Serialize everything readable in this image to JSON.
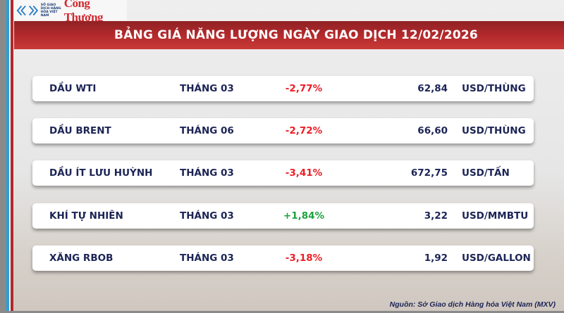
{
  "header": {
    "logo_mxv_text": "SỞ GIAO DỊCH HÀNG HÓA VIỆT NAM",
    "logo_congthuong": "Công Thương",
    "title": "BẢNG GIÁ NĂNG LƯỢNG NGÀY GIAO DỊCH 12/02/2026"
  },
  "colors": {
    "negative": "#ee1c25",
    "positive": "#1aa33c",
    "text": "#1c2455",
    "band": "#b3292c"
  },
  "rows": [
    {
      "name": "DẦU WTI",
      "month": "THÁNG 03",
      "change": "-2,77%",
      "direction": "down",
      "price": "62,84",
      "unit": "USD/THÙNG"
    },
    {
      "name": "DẦU BRENT",
      "month": "THÁNG 06",
      "change": "-2,72%",
      "direction": "down",
      "price": "66,60",
      "unit": "USD/THÙNG"
    },
    {
      "name": "DẦU ÍT LƯU HUỲNH",
      "month": "THÁNG 03",
      "change": "-3,41%",
      "direction": "down",
      "price": "672,75",
      "unit": "USD/TẤN"
    },
    {
      "name": "KHÍ TỰ NHIÊN",
      "month": "THÁNG 03",
      "change": "+1,84%",
      "direction": "up",
      "price": "3,22",
      "unit": "USD/MMBTU"
    },
    {
      "name": "XĂNG RBOB",
      "month": "THÁNG 03",
      "change": "-3,18%",
      "direction": "down",
      "price": "1,92",
      "unit": "USD/GALLON"
    }
  ],
  "footer": {
    "source": "Nguồn: Sở Giao dịch Hàng hóa Việt Nam (MXV)"
  }
}
